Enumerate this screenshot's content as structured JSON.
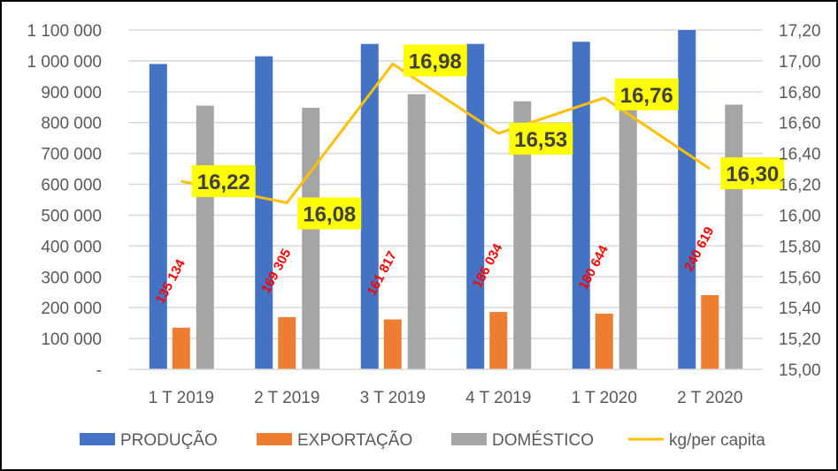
{
  "chart_data": {
    "type": "bar+line",
    "title": "",
    "categories": [
      "1 T 2019",
      "2 T 2019",
      "3 T 2019",
      "4 T 2019",
      "1 T 2020",
      "2 T 2020"
    ],
    "series": [
      {
        "name": "PRODUÇÃO",
        "type": "bar",
        "axis": "left",
        "color": "#4472C4",
        "values": [
          990000,
          1015000,
          1055000,
          1055000,
          1062000,
          1100000
        ]
      },
      {
        "name": "EXPORTAÇÃO",
        "type": "bar",
        "axis": "left",
        "color": "#ED7D31",
        "values": [
          135134,
          169305,
          161817,
          186034,
          180644,
          240619
        ],
        "labels": [
          "135 134",
          "169 305",
          "161 817",
          "186 034",
          "180 644",
          "240 619"
        ],
        "label_color": "#FF0000"
      },
      {
        "name": "DOMÉSTICO",
        "type": "bar",
        "axis": "left",
        "color": "#A5A5A5",
        "values": [
          855000,
          848000,
          892000,
          869000,
          870000,
          858000
        ]
      },
      {
        "name": "kg/per capita",
        "type": "line",
        "axis": "right",
        "color": "#FFC000",
        "values": [
          16.22,
          16.08,
          16.98,
          16.53,
          16.76,
          16.3
        ],
        "labels": [
          "16,22",
          "16,08",
          "16,98",
          "16,53",
          "16,76",
          "16,30"
        ],
        "label_bg": "#FFFF00"
      }
    ],
    "y_left": {
      "range": [
        0,
        1100000
      ],
      "ticks": [
        "-",
        "100 000",
        "200 000",
        "300 000",
        "400 000",
        "500 000",
        "600 000",
        "700 000",
        "800 000",
        "900 000",
        "1 000 000",
        "1 100 000"
      ]
    },
    "y_right": {
      "range": [
        15.0,
        17.2
      ],
      "ticks": [
        "15,00",
        "15,20",
        "15,40",
        "15,60",
        "15,80",
        "16,00",
        "16,20",
        "16,40",
        "16,60",
        "16,80",
        "17,00",
        "17,20"
      ]
    },
    "grid": true,
    "legend": "bottom"
  }
}
